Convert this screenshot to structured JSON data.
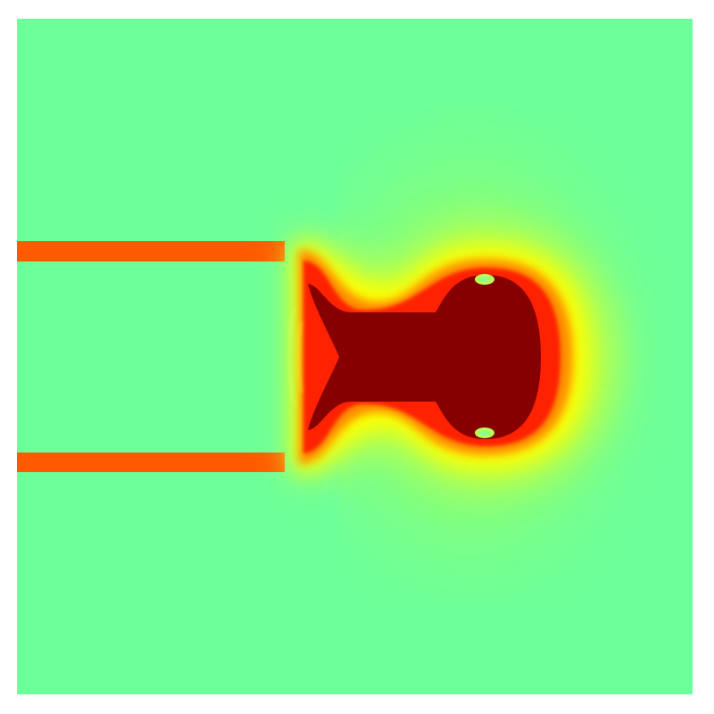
{
  "colormap": {
    "name": "jet",
    "stops": [
      "#00007f",
      "#0000ff",
      "#007fff",
      "#00ffff",
      "#7fff7f",
      "#ffff00",
      "#ff7f00",
      "#ff0000",
      "#7f0000"
    ]
  },
  "palette": {
    "frame_background": "#ffffff",
    "field_background": "#6dff9a",
    "channel_wall": "#ff5a00",
    "hot_core": "#870000",
    "halo_red": "#ff1e00",
    "halo_orange": "#ff8c00",
    "halo_yellow": "#ffff00",
    "halo_lime": "#b4ff4a"
  },
  "field": {
    "description_visible": false,
    "background_level": 0.47,
    "wall_level": 0.83,
    "core_level": 1.0
  }
}
